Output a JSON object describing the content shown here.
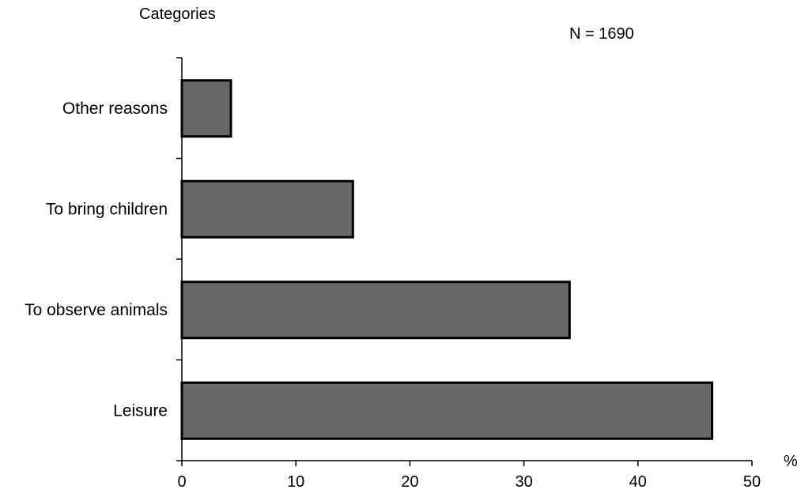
{
  "chart_data": {
    "type": "bar",
    "orientation": "horizontal",
    "categories": [
      "Leisure",
      "To observe animals",
      "To bring children",
      "Other reasons"
    ],
    "values": [
      46.5,
      34,
      15,
      4.3
    ],
    "ylabel": "Categories",
    "xlabel": "%",
    "annotation": "N = 1690",
    "xlim": [
      0,
      50
    ],
    "xticks": [
      "0",
      "10",
      "20",
      "30",
      "40",
      "50"
    ],
    "grid": false,
    "legend": "none",
    "bar_color": "#686868",
    "bar_stroke": "#000000"
  }
}
